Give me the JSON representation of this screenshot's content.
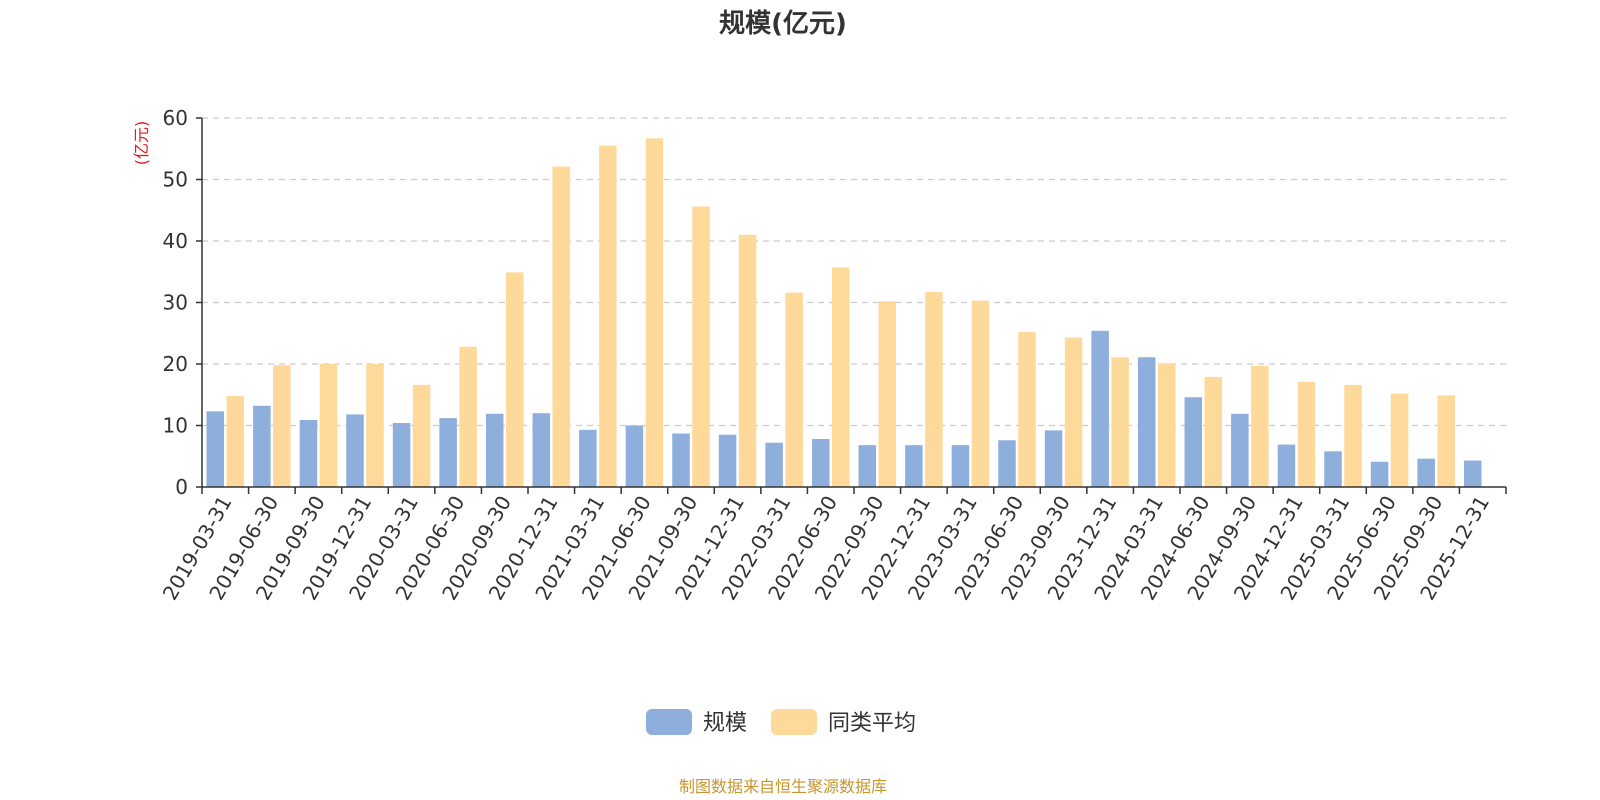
{
  "chart_data": {
    "type": "bar",
    "title": "规模(亿元)",
    "ylabel": "(亿元)",
    "xlabel": "",
    "ylim": [
      0,
      60
    ],
    "yticks": [
      0,
      10,
      20,
      30,
      40,
      50,
      60
    ],
    "grid": true,
    "legend_position": "bottom-center",
    "categories": [
      "2019-03-31",
      "2019-06-30",
      "2019-09-30",
      "2019-12-31",
      "2020-03-31",
      "2020-06-30",
      "2020-09-30",
      "2020-12-31",
      "2021-03-31",
      "2021-06-30",
      "2021-09-30",
      "2021-12-31",
      "2022-03-31",
      "2022-06-30",
      "2022-09-30",
      "2022-12-31",
      "2023-03-31",
      "2023-06-30",
      "2023-09-30",
      "2023-12-31",
      "2024-03-31",
      "2024-06-30",
      "2024-09-30",
      "2024-12-31",
      "2025-03-31",
      "2025-06-30",
      "2025-09-30",
      "2025-12-31"
    ],
    "series": [
      {
        "name": "规模",
        "color": "#8eaedb",
        "values": [
          12.3,
          13.2,
          10.9,
          11.8,
          10.4,
          11.2,
          11.9,
          12.0,
          9.3,
          10.0,
          8.7,
          8.5,
          7.2,
          7.8,
          6.8,
          6.8,
          6.8,
          7.6,
          9.2,
          25.4,
          21.1,
          14.6,
          11.9,
          6.9,
          5.8,
          4.1,
          4.6,
          4.3
        ]
      },
      {
        "name": "同类平均",
        "color": "#ffd99a",
        "values": [
          14.8,
          19.8,
          20.0,
          20.0,
          16.6,
          22.8,
          34.9,
          52.1,
          55.5,
          56.7,
          45.6,
          41.0,
          31.6,
          35.7,
          30.2,
          31.7,
          30.3,
          25.2,
          24.3,
          21.1,
          20.1,
          17.9,
          19.7,
          17.1,
          16.6,
          15.2,
          14.9,
          null
        ]
      }
    ]
  },
  "source_note": "制图数据来自恒生聚源数据库",
  "colors": {
    "axis": "#333333",
    "grid": "#cccccc",
    "ylabel": "#e8141c",
    "source": "#c8962e"
  }
}
